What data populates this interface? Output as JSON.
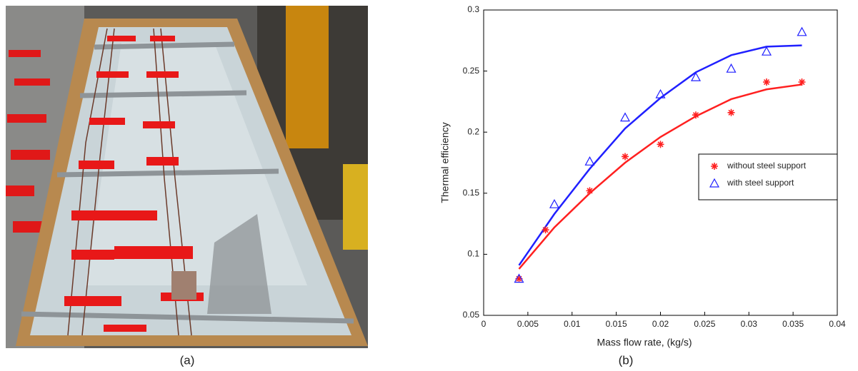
{
  "chart_data": {
    "type": "scatter",
    "xlabel": "Mass flow rate, (kg/s)",
    "ylabel": "Thermal efficiency",
    "panel_labels": [
      "(a)",
      "(b)"
    ],
    "xlim": [
      0,
      0.04
    ],
    "xticks": [
      0,
      0.005,
      0.01,
      0.015,
      0.02,
      0.025,
      0.03,
      0.035,
      0.04
    ],
    "ylim": [
      0.05,
      0.3
    ],
    "yticks": [
      0.05,
      0.1,
      0.15,
      0.2,
      0.25,
      0.3
    ],
    "legend": "right",
    "series": [
      {
        "name": "without steel support",
        "color": "#ff2020",
        "marker": "star",
        "x": [
          0.004,
          0.007,
          0.012,
          0.016,
          0.02,
          0.024,
          0.028,
          0.032,
          0.036
        ],
        "values": [
          0.08,
          0.12,
          0.152,
          0.18,
          0.19,
          0.214,
          0.216,
          0.241,
          0.241
        ]
      },
      {
        "name": "with steel support",
        "color": "#2020ff",
        "marker": "triangle",
        "x": [
          0.004,
          0.008,
          0.012,
          0.016,
          0.02,
          0.024,
          0.028,
          0.032,
          0.036
        ],
        "values": [
          0.08,
          0.141,
          0.176,
          0.212,
          0.231,
          0.245,
          0.252,
          0.266,
          0.282
        ]
      }
    ],
    "fits": [
      {
        "color": "#ff2020",
        "x": [
          0.004,
          0.008,
          0.012,
          0.016,
          0.02,
          0.024,
          0.028,
          0.032,
          0.036
        ],
        "values": [
          0.088,
          0.122,
          0.15,
          0.175,
          0.196,
          0.213,
          0.227,
          0.235,
          0.239
        ]
      },
      {
        "color": "#2020ff",
        "x": [
          0.004,
          0.008,
          0.012,
          0.016,
          0.02,
          0.024,
          0.028,
          0.032,
          0.036
        ],
        "values": [
          0.091,
          0.133,
          0.17,
          0.203,
          0.228,
          0.249,
          0.263,
          0.27,
          0.271
        ]
      }
    ]
  }
}
